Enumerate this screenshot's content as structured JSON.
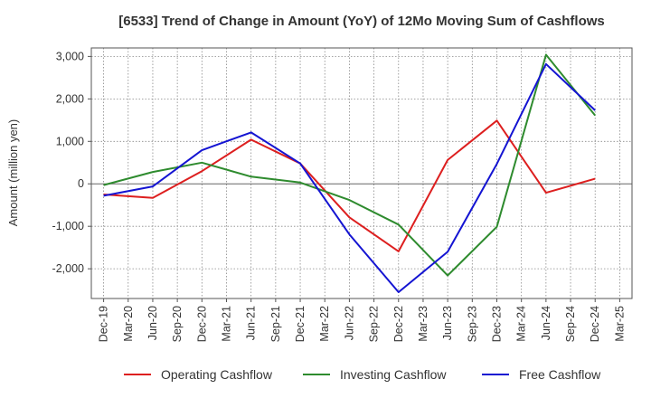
{
  "chart_data": {
    "type": "line",
    "title": "[6533]  Trend of Change in Amount (YoY) of 12Mo Moving Sum of Cashflows",
    "xlabel": "",
    "ylabel": "Amount (million yen)",
    "ylim": [
      -2700,
      3200
    ],
    "yticks": [
      3000,
      2000,
      1000,
      0,
      -1000,
      -2000
    ],
    "ytick_labels": [
      "3,000",
      "2,000",
      "1,000",
      "0",
      "-1,000",
      "-2,000"
    ],
    "categories": [
      "Dec-19",
      "Mar-20",
      "Jun-20",
      "Sep-20",
      "Dec-20",
      "Mar-21",
      "Jun-21",
      "Sep-21",
      "Dec-21",
      "Mar-22",
      "Jun-22",
      "Sep-22",
      "Dec-22",
      "Mar-23",
      "Jun-23",
      "Sep-23",
      "Dec-23",
      "Mar-24",
      "Jun-24",
      "Sep-24",
      "Dec-24",
      "Mar-25"
    ],
    "grid": true,
    "legend_position": "bottom",
    "series": [
      {
        "name": "Operating Cashflow",
        "color": "#dd1f1f",
        "values": [
          -250,
          null,
          -330,
          null,
          300,
          null,
          1040,
          null,
          480,
          null,
          -790,
          null,
          -1590,
          null,
          560,
          null,
          1490,
          null,
          -210,
          null,
          120,
          null
        ]
      },
      {
        "name": "Investing Cashflow",
        "color": "#2e8b2e",
        "values": [
          -30,
          null,
          280,
          null,
          500,
          null,
          170,
          null,
          30,
          null,
          -380,
          null,
          -960,
          null,
          -2160,
          null,
          -1010,
          null,
          3040,
          null,
          1610,
          null
        ]
      },
      {
        "name": "Free Cashflow",
        "color": "#1414d2",
        "values": [
          -280,
          null,
          -60,
          null,
          790,
          null,
          1210,
          null,
          480,
          null,
          -1190,
          null,
          -2550,
          null,
          -1600,
          null,
          470,
          null,
          2820,
          null,
          1730,
          null
        ]
      }
    ]
  }
}
